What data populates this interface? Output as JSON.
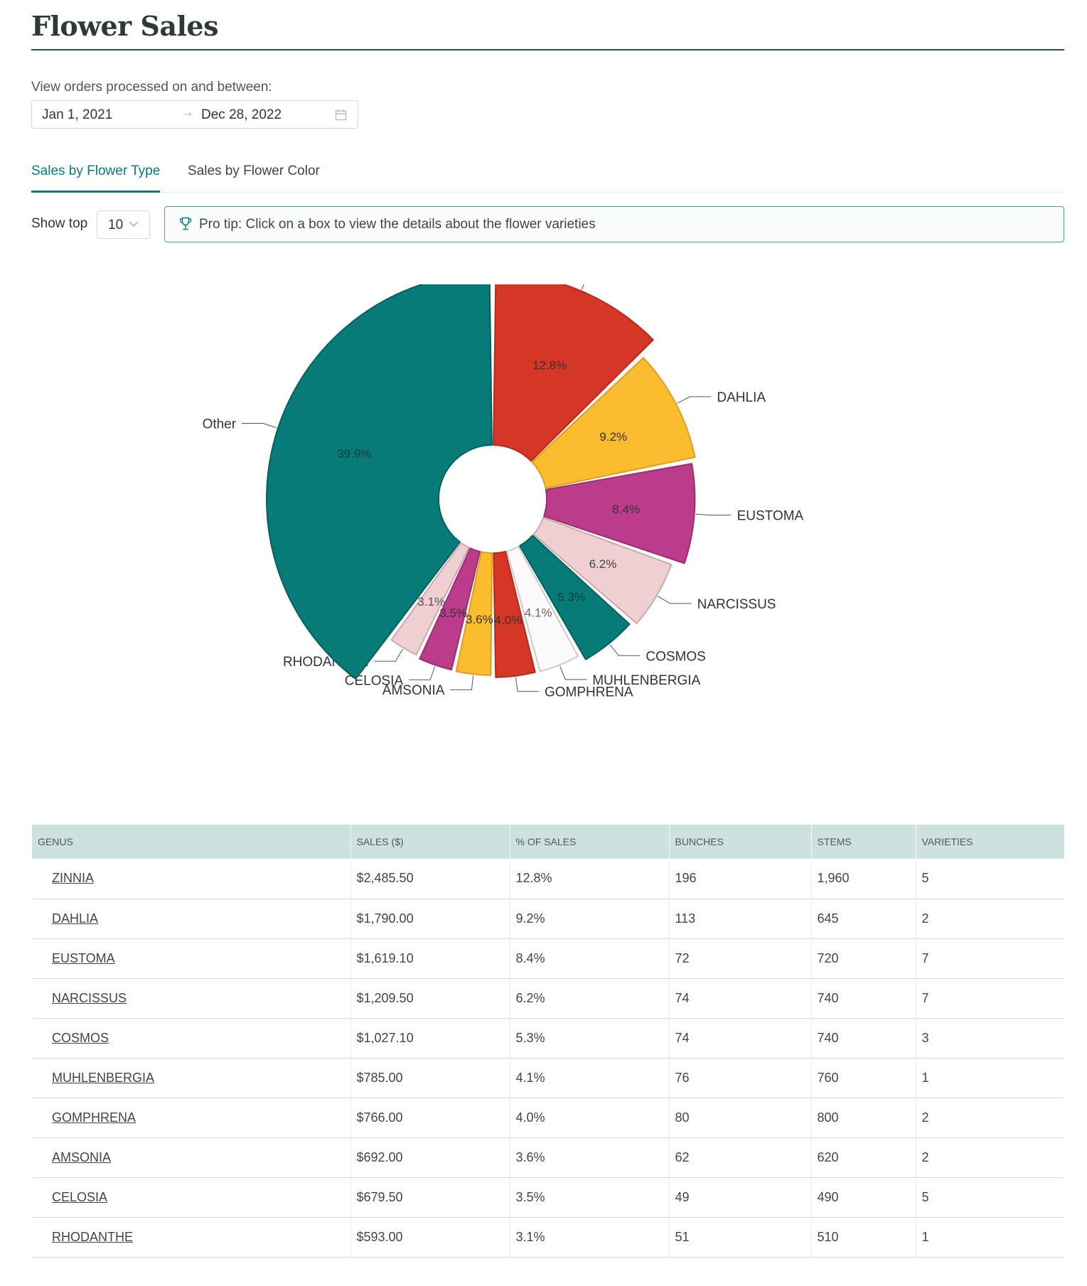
{
  "page": {
    "title": "Flower Sales"
  },
  "date_range": {
    "label": "View orders processed on and between:",
    "start": "Jan 1, 2021",
    "separator": "→",
    "end": "Dec 28, 2022"
  },
  "tabs": [
    {
      "label": "Sales by Flower Type",
      "active": true
    },
    {
      "label": "Sales by Flower Color",
      "active": false
    }
  ],
  "controls": {
    "show_top_label": "Show top",
    "show_top_value": "10"
  },
  "protip": {
    "text": "Pro tip: Click on a box to view the details about the flower varieties"
  },
  "chart_data": {
    "type": "pie",
    "donut": true,
    "categories": [
      "ZINNIA",
      "DAHLIA",
      "EUSTOMA",
      "NARCISSUS",
      "COSMOS",
      "MUHLENBERGIA",
      "GOMPHRENA",
      "AMSONIA",
      "CELOSIA",
      "RHODANTHE",
      "Other"
    ],
    "values": [
      12.8,
      9.2,
      8.4,
      6.2,
      5.3,
      4.1,
      4.0,
      3.6,
      3.5,
      3.1,
      39.9
    ],
    "value_labels": [
      "12.8%",
      "9.2%",
      "8.4%",
      "6.2%",
      "5.3%",
      "4.1%",
      "4.0%",
      "3.6%",
      "3.5%",
      "3.1%",
      "39.9%"
    ],
    "colors": [
      "#d63626",
      "#fbbc2f",
      "#bb3d8a",
      "#f0cfd2",
      "#077b78",
      "#fbf9f9",
      "#d63626",
      "#fbbc2f",
      "#bb3d8a",
      "#f0cfd2",
      "#077b78"
    ],
    "stroke_colors": [
      "#b52a1d",
      "#dba020",
      "#98306f",
      "#c9a9ac",
      "#05605d",
      "#cccccc",
      "#b52a1d",
      "#dba020",
      "#98306f",
      "#c9a9ac",
      "#05605d"
    ],
    "label_text_colors": [
      "#333333",
      "#333333",
      "#333333",
      "#444444",
      "#0b3b39",
      "#666666",
      "#333333",
      "#333333",
      "#333333",
      "#555555",
      "#0b3b39"
    ]
  },
  "table": {
    "columns": [
      "GENUS",
      "SALES ($)",
      "% OF SALES",
      "BUNCHES",
      "STEMS",
      "VARIETIES"
    ],
    "rows": [
      [
        "ZINNIA",
        "$2,485.50",
        "12.8%",
        "196",
        "1,960",
        "5"
      ],
      [
        "DAHLIA",
        "$1,790.00",
        "9.2%",
        "113",
        "645",
        "2"
      ],
      [
        "EUSTOMA",
        "$1,619.10",
        "8.4%",
        "72",
        "720",
        "7"
      ],
      [
        "NARCISSUS",
        "$1,209.50",
        "6.2%",
        "74",
        "740",
        "7"
      ],
      [
        "COSMOS",
        "$1,027.10",
        "5.3%",
        "74",
        "740",
        "3"
      ],
      [
        "MUHLENBERGIA",
        "$785.00",
        "4.1%",
        "76",
        "760",
        "1"
      ],
      [
        "GOMPHRENA",
        "$766.00",
        "4.0%",
        "80",
        "800",
        "2"
      ],
      [
        "AMSONIA",
        "$692.00",
        "3.6%",
        "62",
        "620",
        "2"
      ],
      [
        "CELOSIA",
        "$679.50",
        "3.5%",
        "49",
        "490",
        "5"
      ],
      [
        "RHODANTHE",
        "$593.00",
        "3.1%",
        "51",
        "510",
        "1"
      ]
    ]
  }
}
